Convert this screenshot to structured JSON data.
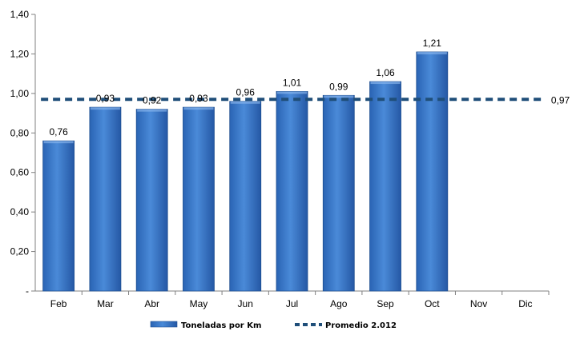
{
  "chart_data": {
    "type": "bar",
    "title": "",
    "xlabel": "",
    "ylabel": "",
    "categories": [
      "Feb",
      "Mar",
      "Abr",
      "May",
      "Jun",
      "Jul",
      "Ago",
      "Sep",
      "Oct",
      "Nov",
      "Dic"
    ],
    "series": [
      {
        "name": "Toneladas por Km",
        "type": "bar",
        "values": [
          0.76,
          0.93,
          0.92,
          0.93,
          0.96,
          1.01,
          0.99,
          1.06,
          1.21,
          null,
          null
        ],
        "labels": [
          "0,76",
          "0,93",
          "0,92",
          "0,93",
          "0,96",
          "1,01",
          "0,99",
          "1,06",
          "1,21",
          "",
          ""
        ],
        "color": "#3a78c8"
      },
      {
        "name": "Promedio 2.012",
        "type": "line",
        "style": "dashed",
        "value": 0.97,
        "label": "0,97",
        "color": "#1f4e79"
      }
    ],
    "ylim": [
      0,
      1.4
    ],
    "yticks": [
      0,
      0.2,
      0.4,
      0.6,
      0.8,
      1.0,
      1.2,
      1.4
    ],
    "ytick_labels": [
      "-",
      "0,20",
      "0,40",
      "0,60",
      "0,80",
      "1,00",
      "1,20",
      "1,40"
    ],
    "grid": false,
    "legend_position": "bottom"
  }
}
